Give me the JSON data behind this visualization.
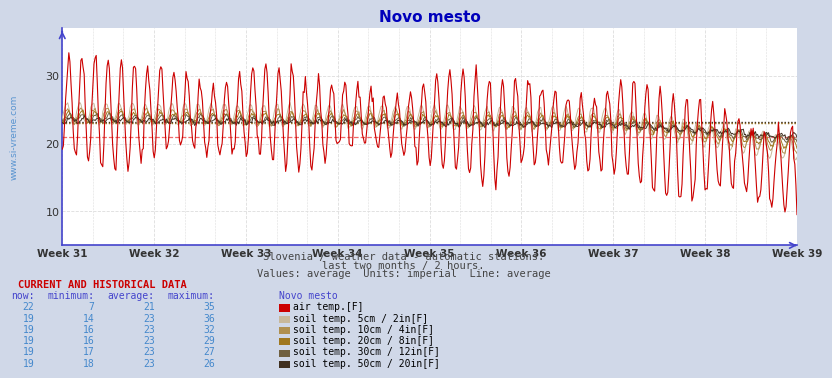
{
  "title": "Novo mesto",
  "background_color": "#d0d8e8",
  "plot_bg_color": "#ffffff",
  "x_labels": [
    "Week 31",
    "Week 32",
    "Week 33",
    "Week 34",
    "Week 35",
    "Week 36",
    "Week 37",
    "Week 38",
    "Week 39"
  ],
  "y_ticks": [
    10,
    20,
    30
  ],
  "ylim": [
    5,
    37
  ],
  "subtitle1": "Slovenia / weather data - automatic stations.",
  "subtitle2": "last two months / 2 hours.",
  "subtitle3": "Values: average  Units: imperial  Line: average",
  "watermark": "www.si-vreme.com",
  "series_colors": [
    "#cc0000",
    "#c8b89a",
    "#b09050",
    "#a07820",
    "#706040",
    "#403020"
  ],
  "air_avg_color": "#ee4444",
  "soil_avg_color": "#888855",
  "grid_color": "#dddddd",
  "axis_color": "#4444cc",
  "table_header_color": "#4444cc",
  "table_data_color": "#4488cc",
  "current_and_historical": "CURRENT AND HISTORICAL DATA",
  "columns": [
    "now:",
    "minimum:",
    "average:",
    "maximum:",
    "Novo mesto"
  ],
  "rows": [
    {
      "now": 22,
      "min": 7,
      "avg": 21,
      "max": 35,
      "color": "#cc0000",
      "label": "air temp.[F]"
    },
    {
      "now": 19,
      "min": 14,
      "avg": 23,
      "max": 36,
      "color": "#c8b89a",
      "label": "soil temp. 5cm / 2in[F]"
    },
    {
      "now": 19,
      "min": 16,
      "avg": 23,
      "max": 32,
      "color": "#b09050",
      "label": "soil temp. 10cm / 4in[F]"
    },
    {
      "now": 19,
      "min": 16,
      "avg": 23,
      "max": 29,
      "color": "#a07820",
      "label": "soil temp. 20cm / 8in[F]"
    },
    {
      "now": 19,
      "min": 17,
      "avg": 23,
      "max": 27,
      "color": "#706040",
      "label": "soil temp. 30cm / 12in[F]"
    },
    {
      "now": 19,
      "min": 18,
      "avg": 23,
      "max": 26,
      "color": "#403020",
      "label": "soil temp. 50cm / 20in[F]"
    }
  ],
  "n_points": 672,
  "weeks": 9,
  "start_week": 31
}
